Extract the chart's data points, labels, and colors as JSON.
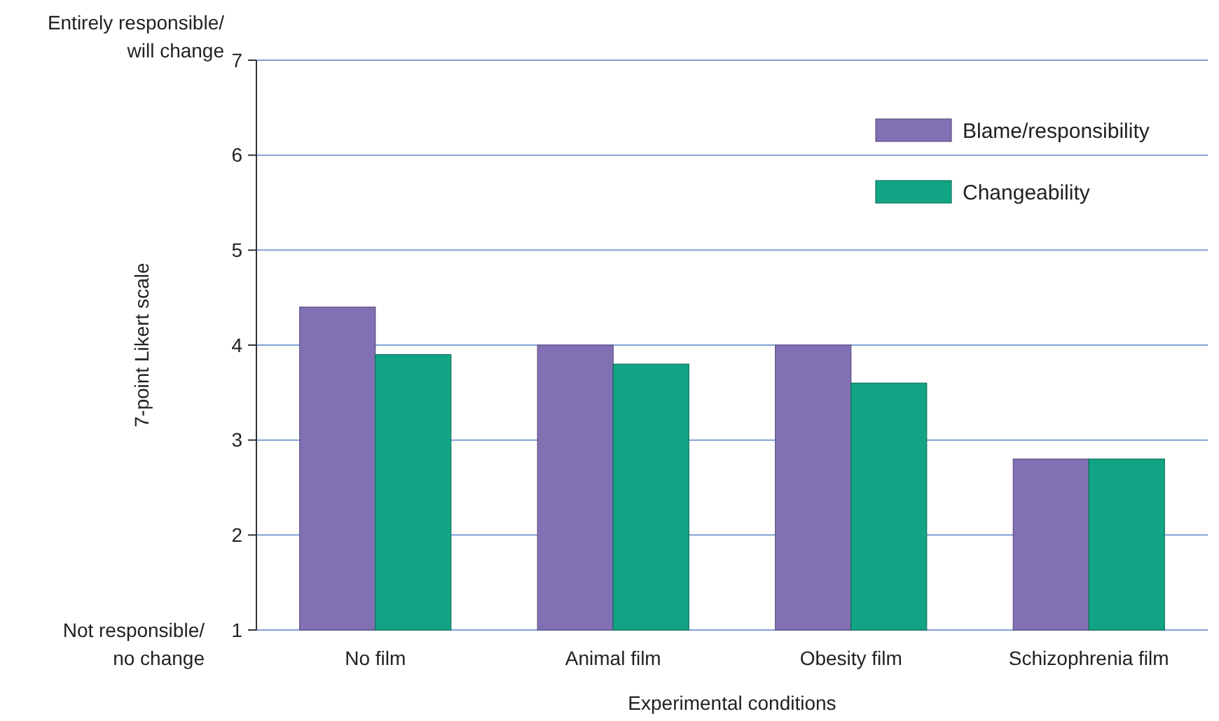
{
  "chart_data": {
    "type": "bar",
    "xlabel": "Experimental conditions",
    "ylabel": "7-point Likert scale",
    "categories": [
      "No film",
      "Animal film",
      "Obesity film",
      "Schizophrenia film"
    ],
    "series": [
      {
        "name": "Blame/responsibility",
        "color": "#8270b4",
        "values": [
          4.4,
          4.0,
          4.0,
          2.8
        ]
      },
      {
        "name": "Changeability",
        "color": "#12a585",
        "values": [
          3.9,
          3.8,
          3.6,
          2.8
        ]
      }
    ],
    "ylim": [
      1,
      7
    ],
    "yticks": [
      1,
      2,
      3,
      4,
      5,
      6,
      7
    ],
    "grid": "y",
    "legend": "top right",
    "annotations": [
      "Entirely responsible/ will change",
      "Not responsible/ no change"
    ]
  }
}
